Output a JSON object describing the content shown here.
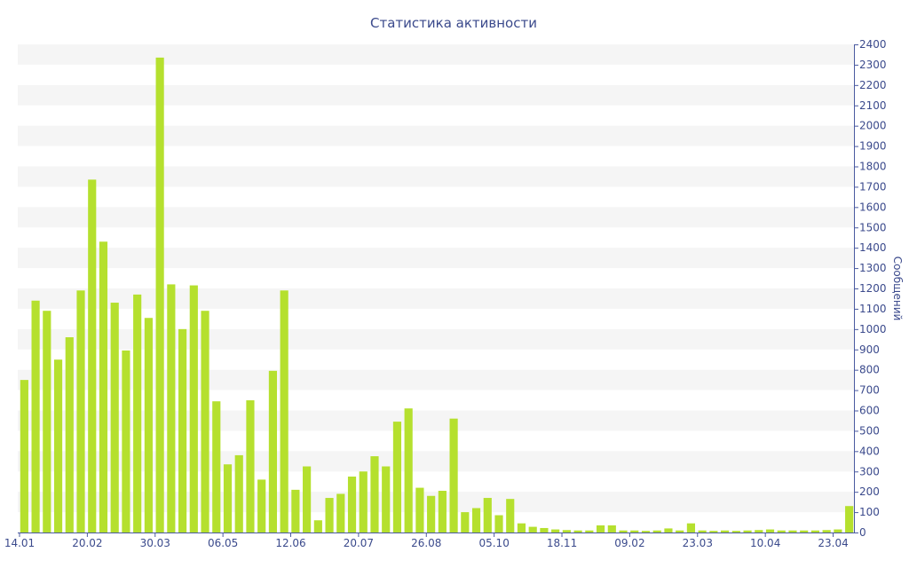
{
  "colors": {
    "bar": "#b5e02e",
    "text": "#3b4a8c",
    "axis": "#4a5aa0",
    "band": "#f5f5f5"
  },
  "chart_data": {
    "type": "bar",
    "title": "Статистика активности",
    "ylabel": "Сообщений",
    "xlabel": "",
    "y_axis_side": "right",
    "ylim": [
      0,
      2400
    ],
    "yticks": [
      0,
      100,
      200,
      300,
      400,
      500,
      600,
      700,
      800,
      900,
      1000,
      1100,
      1200,
      1300,
      1400,
      1500,
      1600,
      1700,
      1800,
      1900,
      2000,
      2100,
      2200,
      2300,
      2400
    ],
    "grid": "alternating horizontal bands",
    "xtick_labels": [
      {
        "label": "14.01",
        "index": 0
      },
      {
        "label": "20.02",
        "index": 6
      },
      {
        "label": "30.03",
        "index": 12
      },
      {
        "label": "06.05",
        "index": 18
      },
      {
        "label": "12.06",
        "index": 24
      },
      {
        "label": "20.07",
        "index": 30
      },
      {
        "label": "26.08",
        "index": 36
      },
      {
        "label": "05.10",
        "index": 42
      },
      {
        "label": "18.11",
        "index": 48
      },
      {
        "label": "09.02",
        "index": 54
      },
      {
        "label": "23.03",
        "index": 60
      },
      {
        "label": "10.04",
        "index": 66
      },
      {
        "label": "23.04",
        "index": 72
      }
    ],
    "values": [
      750,
      1140,
      1090,
      850,
      960,
      1190,
      1735,
      1430,
      1130,
      895,
      1170,
      1055,
      2335,
      1220,
      1000,
      1215,
      1090,
      645,
      335,
      380,
      650,
      260,
      795,
      1190,
      210,
      325,
      60,
      170,
      190,
      275,
      300,
      375,
      325,
      545,
      610,
      220,
      180,
      205,
      560,
      100,
      120,
      170,
      85,
      165,
      45,
      28,
      22,
      15,
      12,
      10,
      10,
      35,
      35,
      10,
      10,
      8,
      10,
      20,
      10,
      45,
      10,
      8,
      10,
      8,
      10,
      12,
      15,
      10,
      10,
      10,
      10,
      12,
      15,
      130
    ]
  }
}
